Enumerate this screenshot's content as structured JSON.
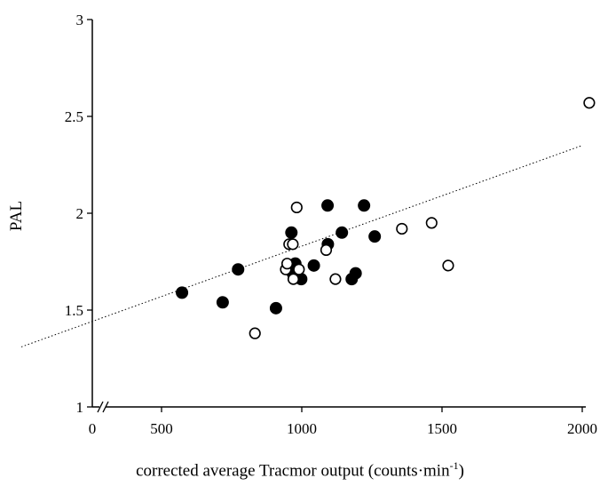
{
  "chart_data": {
    "type": "scatter",
    "ylabel": "PAL",
    "xlabel": {
      "prefix": "corrected average Tracmor output (counts·min",
      "superscript": "-1",
      "suffix": ")"
    },
    "xlim": [
      0,
      2000
    ],
    "ylim": [
      1,
      3
    ],
    "x_axis_break": true,
    "x_ticks": [
      {
        "value": 0,
        "label": "0"
      },
      {
        "value": 500,
        "label": "500"
      },
      {
        "value": 1000,
        "label": "1000"
      },
      {
        "value": 1500,
        "label": "1500"
      },
      {
        "value": 2000,
        "label": "2000"
      }
    ],
    "y_ticks": [
      {
        "value": 1,
        "label": "1"
      },
      {
        "value": 1.5,
        "label": "1.5"
      },
      {
        "value": 2,
        "label": "2"
      },
      {
        "value": 2.5,
        "label": "2.5"
      },
      {
        "value": 3,
        "label": "3"
      }
    ],
    "grid": false,
    "series": [
      {
        "marker": "filled-circle",
        "points": [
          {
            "x": 573,
            "y": 1.59
          },
          {
            "x": 718,
            "y": 1.54
          },
          {
            "x": 773,
            "y": 1.71
          },
          {
            "x": 908,
            "y": 1.51
          },
          {
            "x": 963,
            "y": 1.9
          },
          {
            "x": 977,
            "y": 1.74
          },
          {
            "x": 968,
            "y": 1.69
          },
          {
            "x": 998,
            "y": 1.66
          },
          {
            "x": 1043,
            "y": 1.73
          },
          {
            "x": 1092,
            "y": 2.04
          },
          {
            "x": 1093,
            "y": 1.84
          },
          {
            "x": 1143,
            "y": 1.9
          },
          {
            "x": 1178,
            "y": 1.66
          },
          {
            "x": 1192,
            "y": 1.69
          },
          {
            "x": 1222,
            "y": 2.04
          },
          {
            "x": 1260,
            "y": 1.88
          }
        ]
      },
      {
        "marker": "open-circle",
        "points": [
          {
            "x": 833,
            "y": 1.38
          },
          {
            "x": 943,
            "y": 1.71
          },
          {
            "x": 948,
            "y": 1.74
          },
          {
            "x": 955,
            "y": 1.84
          },
          {
            "x": 968,
            "y": 1.84
          },
          {
            "x": 970,
            "y": 1.66
          },
          {
            "x": 982,
            "y": 2.03
          },
          {
            "x": 990,
            "y": 1.71
          },
          {
            "x": 1087,
            "y": 1.81
          },
          {
            "x": 1120,
            "y": 1.66
          },
          {
            "x": 1357,
            "y": 1.92
          },
          {
            "x": 1463,
            "y": 1.95
          },
          {
            "x": 1522,
            "y": 1.73
          },
          {
            "x": 2025,
            "y": 2.57
          }
        ]
      }
    ],
    "trendline": {
      "style": "dotted",
      "from": {
        "x": 0,
        "y": 1.31
      },
      "to": {
        "x": 2000,
        "y": 2.35
      }
    }
  }
}
